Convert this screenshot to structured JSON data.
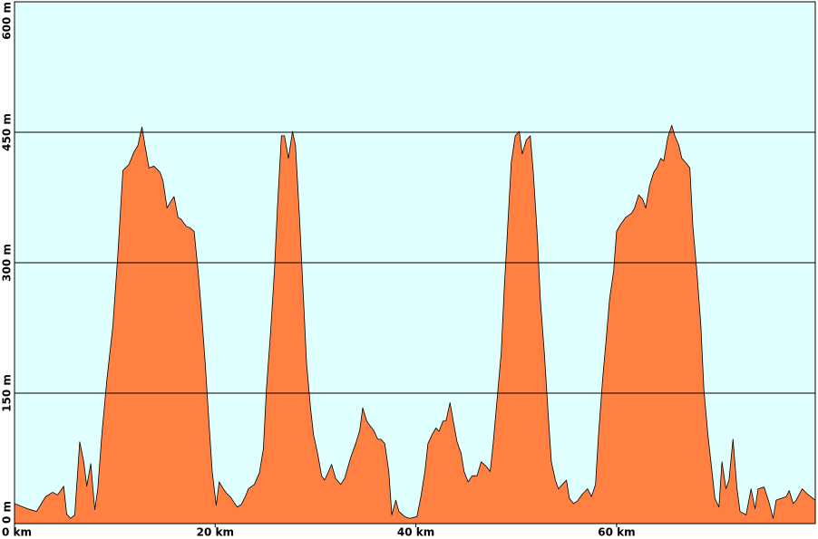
{
  "chart_data": {
    "type": "area",
    "x": [
      0,
      1.3,
      2.2,
      3.1,
      3.8,
      4.3,
      4.9,
      5.2,
      5.6,
      6.0,
      6.5,
      6.9,
      7.2,
      7.6,
      8.0,
      8.3,
      8.7,
      9.2,
      9.8,
      10.3,
      10.8,
      11.4,
      11.9,
      12.3,
      12.7,
      13.0,
      13.4,
      13.9,
      14.5,
      14.8,
      15.2,
      15.6,
      15.9,
      16.3,
      16.6,
      17.1,
      17.5,
      17.9,
      18.3,
      18.6,
      19.0,
      19.4,
      19.7,
      20.1,
      20.4,
      20.8,
      21.2,
      21.5,
      21.9,
      22.2,
      22.6,
      23.0,
      23.3,
      23.9,
      24.4,
      24.8,
      25.1,
      25.5,
      25.9,
      26.2,
      26.6,
      26.9,
      27.3,
      27.7,
      28.0,
      28.4,
      28.8,
      29.1,
      29.5,
      29.8,
      30.2,
      30.6,
      30.9,
      31.3,
      31.6,
      32.0,
      32.5,
      32.9,
      33.5,
      34.0,
      34.4,
      34.7,
      35.1,
      35.4,
      35.8,
      36.2,
      36.5,
      36.9,
      37.3,
      37.6,
      38.0,
      38.3,
      38.9,
      39.4,
      40.1,
      40.5,
      40.9,
      41.2,
      41.6,
      42.0,
      42.3,
      42.7,
      43.0,
      43.4,
      43.8,
      44.1,
      44.5,
      44.8,
      45.2,
      45.6,
      46.1,
      46.5,
      47.0,
      47.4,
      47.7,
      48.1,
      48.5,
      48.8,
      49.2,
      49.5,
      49.9,
      50.3,
      50.6,
      51.0,
      51.4,
      51.7,
      52.1,
      52.4,
      52.8,
      53.2,
      53.5,
      53.9,
      54.2,
      54.6,
      55.0,
      55.3,
      55.7,
      56.1,
      56.6,
      57.1,
      57.5,
      57.9,
      58.2,
      58.6,
      59.0,
      59.3,
      59.7,
      60.0,
      60.4,
      60.9,
      61.5,
      61.8,
      62.2,
      62.6,
      62.9,
      63.3,
      63.7,
      64.0,
      64.4,
      64.7,
      65.1,
      65.5,
      65.8,
      66.2,
      66.5,
      66.9,
      67.3,
      67.6,
      68.0,
      68.4,
      68.7,
      69.1,
      69.4,
      69.8,
      70.2,
      70.5,
      70.9,
      71.2,
      71.6,
      72.0,
      72.3,
      72.9,
      73.4,
      73.8,
      74.1,
      74.7,
      75.2,
      75.6,
      75.9,
      76.9,
      77.2,
      77.6,
      77.9,
      78.5,
      79.0,
      79.8
    ],
    "values": [
      23,
      17,
      14,
      31,
      36,
      33,
      43,
      11,
      6,
      10,
      94,
      71,
      43,
      69,
      16,
      40,
      102,
      165,
      227,
      310,
      406,
      413,
      427,
      435,
      456,
      435,
      409,
      411,
      404,
      394,
      363,
      371,
      376,
      352,
      350,
      342,
      340,
      336,
      290,
      248,
      185,
      113,
      60,
      21,
      48,
      40,
      34,
      31,
      24,
      19,
      22,
      31,
      40,
      45,
      58,
      86,
      154,
      217,
      290,
      363,
      446,
      446,
      420,
      451,
      435,
      352,
      258,
      185,
      133,
      102,
      81,
      55,
      50,
      60,
      68,
      52,
      45,
      52,
      76,
      92,
      107,
      133,
      118,
      113,
      107,
      97,
      97,
      92,
      60,
      10,
      27,
      14,
      8,
      6,
      8,
      31,
      60,
      92,
      102,
      110,
      106,
      118,
      118,
      139,
      113,
      94,
      81,
      60,
      48,
      55,
      55,
      71,
      66,
      60,
      92,
      144,
      196,
      269,
      352,
      415,
      446,
      451,
      425,
      441,
      446,
      404,
      331,
      258,
      196,
      123,
      71,
      50,
      40,
      45,
      50,
      29,
      23,
      26,
      34,
      40,
      31,
      45,
      102,
      165,
      217,
      258,
      290,
      336,
      344,
      352,
      357,
      363,
      378,
      373,
      363,
      389,
      404,
      409,
      420,
      417,
      444,
      458,
      446,
      435,
      420,
      415,
      409,
      342,
      290,
      227,
      154,
      102,
      71,
      29,
      19,
      71,
      40,
      50,
      97,
      40,
      14,
      10,
      40,
      17,
      40,
      42,
      24,
      6,
      27,
      31,
      38,
      23,
      27,
      40,
      34,
      27
    ],
    "color": "#ff8040",
    "outline": "#000000",
    "background": "#e0ffff",
    "xlim": [
      0,
      79.8
    ],
    "xticks": [
      {
        "value": 0,
        "label": "0 km"
      },
      {
        "value": 20,
        "label": "20 km"
      },
      {
        "value": 40,
        "label": "40 km"
      },
      {
        "value": 60,
        "label": "60 km"
      }
    ],
    "ylim": [
      0,
      600
    ],
    "yticks": [
      {
        "value": 0,
        "label": "0 m"
      },
      {
        "value": 150,
        "label": "150 m"
      },
      {
        "value": 300,
        "label": "300 m"
      },
      {
        "value": 450,
        "label": "450 m"
      },
      {
        "value": 600,
        "label": "600 m"
      }
    ],
    "grid": true
  }
}
